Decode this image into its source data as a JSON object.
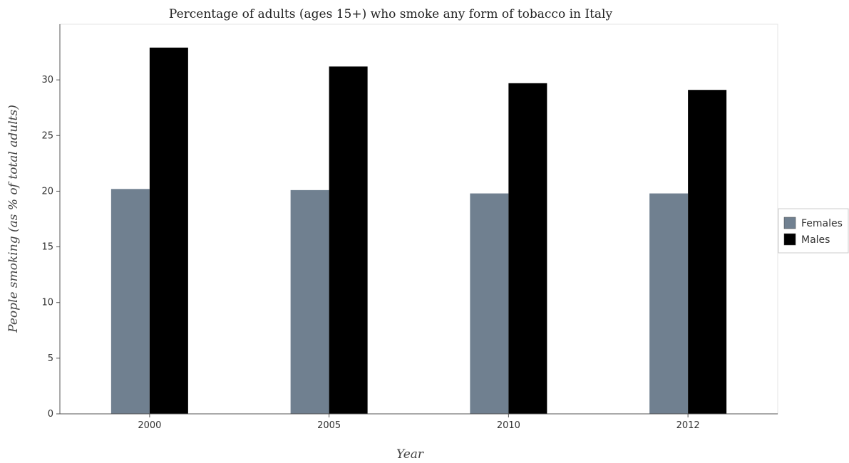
{
  "chart_data": {
    "type": "bar",
    "title": "Percentage of adults (ages 15+) who smoke any form of tobacco in Italy",
    "xlabel": "Year",
    "ylabel": "People smoking (as % of total adults)",
    "categories": [
      "2000",
      "2005",
      "2010",
      "2012"
    ],
    "series": [
      {
        "name": "Females",
        "color": "#708090",
        "values": [
          20.2,
          20.1,
          19.8,
          19.8
        ]
      },
      {
        "name": "Males",
        "color": "#000000",
        "values": [
          32.9,
          31.2,
          29.7,
          29.1
        ]
      }
    ],
    "ylim": [
      0,
      35
    ],
    "yticks": [
      0,
      5,
      10,
      15,
      20,
      25,
      30
    ],
    "grid": false,
    "legend_position": "right"
  }
}
